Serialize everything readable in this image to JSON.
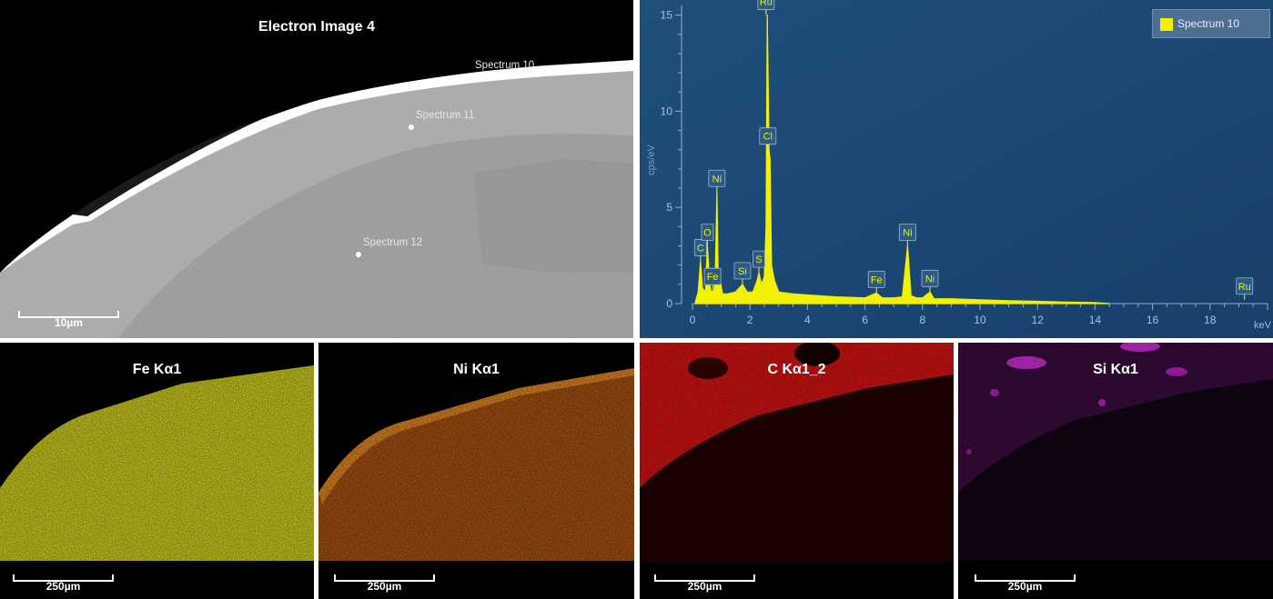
{
  "electron_image": {
    "title": "Electron Image 4",
    "scale_label": "10µm",
    "markers": [
      {
        "label": "Spectrum 10"
      },
      {
        "label": "Spectrum 11"
      },
      {
        "label": "Spectrum 12"
      }
    ]
  },
  "spectrum_chart": {
    "legend": "Spectrum 10",
    "ylabel": "cps/eV",
    "xunit": "keV",
    "colors": {
      "background": "#1d4a74",
      "trace": "#f2f200"
    }
  },
  "maps": [
    {
      "title": "Fe Kα1",
      "scale_label": "250µm",
      "color": "#e6e61e"
    },
    {
      "title": "Ni Kα1",
      "scale_label": "250µm",
      "color": "#d9701c"
    },
    {
      "title": "C Kα1_2",
      "scale_label": "250µm",
      "color": "#e01414"
    },
    {
      "title": "Si Kα1",
      "scale_label": "250µm",
      "color": "#c020c8"
    }
  ],
  "chart_data": {
    "type": "line",
    "title": "",
    "xlabel": "keV",
    "ylabel": "cps/eV",
    "xlim": [
      0,
      20
    ],
    "ylim": [
      0,
      15.5
    ],
    "x_ticks": [
      0,
      2,
      4,
      6,
      8,
      10,
      12,
      14,
      16,
      18
    ],
    "y_ticks": [
      0,
      5,
      10,
      15
    ],
    "grid": false,
    "legend_position": "top-right",
    "series": [
      {
        "name": "Spectrum 10",
        "x": [
          0.1,
          0.2,
          0.28,
          0.35,
          0.45,
          0.52,
          0.6,
          0.65,
          0.75,
          0.8,
          0.85,
          0.9,
          0.96,
          1.05,
          1.2,
          1.5,
          1.74,
          1.9,
          2.1,
          2.25,
          2.31,
          2.4,
          2.5,
          2.56,
          2.6,
          2.66,
          2.7,
          2.75,
          2.85,
          3.0,
          3.5,
          4.0,
          5.0,
          6.0,
          6.4,
          6.6,
          7.0,
          7.3,
          7.48,
          7.6,
          7.8,
          8.0,
          8.26,
          8.4,
          9.0,
          10.0,
          11.0,
          12.0,
          13.0,
          14.0,
          14.5
        ],
        "y": [
          0.1,
          0.6,
          2.2,
          0.8,
          0.6,
          3.0,
          1.0,
          0.6,
          0.7,
          2.0,
          5.8,
          1.0,
          1.2,
          0.5,
          0.5,
          0.6,
          1.0,
          0.6,
          0.6,
          1.2,
          1.6,
          1.0,
          1.4,
          4.0,
          15.0,
          8.0,
          7.5,
          2.0,
          1.2,
          0.6,
          0.5,
          0.45,
          0.35,
          0.3,
          0.55,
          0.3,
          0.3,
          0.35,
          3.0,
          0.4,
          0.3,
          0.3,
          0.6,
          0.25,
          0.25,
          0.2,
          0.15,
          0.12,
          0.08,
          0.05,
          0.0
        ]
      }
    ],
    "annotations": [
      {
        "label": "C",
        "x": 0.28,
        "y": 2.2
      },
      {
        "label": "O",
        "x": 0.52,
        "y": 3.0
      },
      {
        "label": "Fe",
        "x": 0.7,
        "y": 0.7
      },
      {
        "label": "Ni",
        "x": 0.85,
        "y": 5.8
      },
      {
        "label": "Si",
        "x": 1.74,
        "y": 1.0
      },
      {
        "label": "S",
        "x": 2.31,
        "y": 1.6
      },
      {
        "label": "Ru",
        "x": 2.56,
        "y": 15.0
      },
      {
        "label": "Cl",
        "x": 2.62,
        "y": 8.0
      },
      {
        "label": "Fe",
        "x": 6.4,
        "y": 0.55
      },
      {
        "label": "Ni",
        "x": 7.48,
        "y": 3.0
      },
      {
        "label": "Ni",
        "x": 8.26,
        "y": 0.6
      },
      {
        "label": "Ru",
        "x": 19.2,
        "y": 0.2
      }
    ]
  }
}
